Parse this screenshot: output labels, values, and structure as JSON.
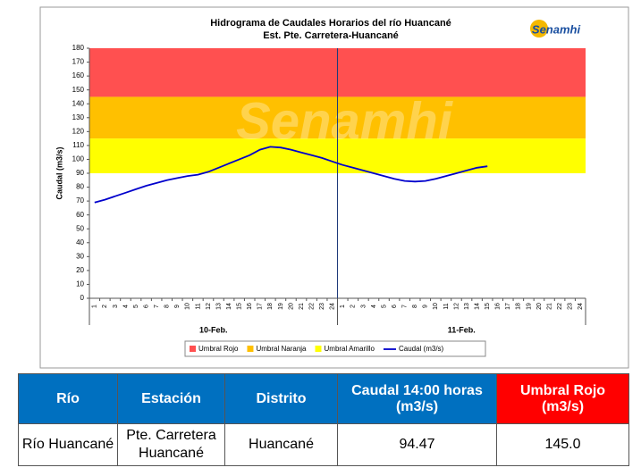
{
  "chart_data": {
    "type": "line",
    "title": "Hidrograma de Caudales Horarios del río Huancané",
    "subtitle": "Est. Pte. Carretera-Huancané",
    "logo": "Senamhi",
    "watermark": "Senamhi",
    "y_label": "Caudal (m3/s)",
    "ylim": [
      0,
      180
    ],
    "yticks": [
      0,
      10,
      20,
      30,
      40,
      50,
      60,
      70,
      80,
      90,
      100,
      110,
      120,
      130,
      140,
      150,
      160,
      170,
      180
    ],
    "categories": [
      "1",
      "2",
      "3",
      "4",
      "5",
      "6",
      "7",
      "8",
      "9",
      "10",
      "11",
      "12",
      "13",
      "14",
      "15",
      "16",
      "17",
      "18",
      "19",
      "20",
      "21",
      "22",
      "23",
      "24",
      "1",
      "2",
      "3",
      "4",
      "5",
      "6",
      "7",
      "8",
      "9",
      "10",
      "11",
      "12",
      "13",
      "14",
      "15",
      "16",
      "17",
      "18",
      "19",
      "20",
      "21",
      "22",
      "23",
      "24"
    ],
    "groups": [
      "10-Feb.",
      "11-Feb."
    ],
    "bands": [
      {
        "name": "Umbral Rojo",
        "color": "#ff5050",
        "from": 145,
        "to": 180
      },
      {
        "name": "Umbral Naranja",
        "color": "#ffc000",
        "from": 115,
        "to": 145
      },
      {
        "name": "Umbral Amarillo",
        "color": "#ffff00",
        "from": 90,
        "to": 115
      }
    ],
    "series": [
      {
        "name": "Caudal (m3/s)",
        "color": "#0000cc",
        "values": [
          69,
          71,
          73.5,
          76,
          78.5,
          81,
          83,
          85,
          86.5,
          88,
          89,
          91,
          94,
          97,
          100,
          103,
          107,
          109,
          108.5,
          107,
          105,
          103,
          101,
          98.5,
          96,
          94,
          92,
          90,
          88,
          86,
          84.5,
          84,
          84.5,
          86,
          88,
          90,
          92,
          94,
          95,
          null,
          null,
          null,
          null,
          null,
          null,
          null,
          null,
          null
        ]
      }
    ]
  },
  "table": {
    "headers": [
      "Río",
      "Estación",
      "Distrito",
      "Caudal  14:00 horas (m3/s)",
      "Umbral Rojo (m3/s)"
    ],
    "rows": [
      [
        "Río Huancané",
        "Pte. Carretera Huancané",
        "Huancané",
        "94.47",
        "145.0"
      ]
    ]
  }
}
